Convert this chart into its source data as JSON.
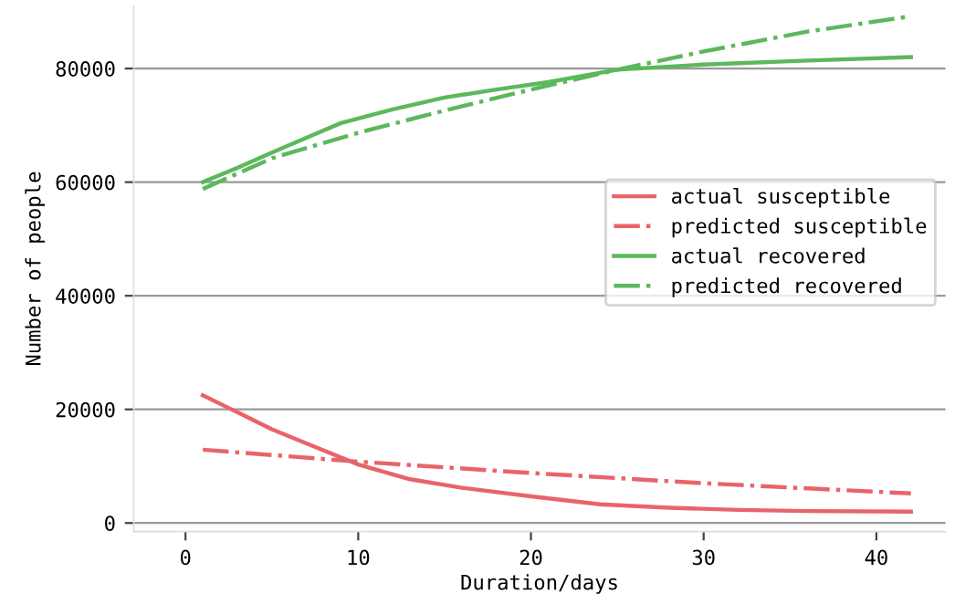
{
  "chart_data": {
    "type": "line",
    "xlabel": "Duration/days",
    "ylabel": "Number of people",
    "xlim": [
      -3,
      44
    ],
    "ylim": [
      -1500,
      91000
    ],
    "xticks": [
      0,
      10,
      20,
      30,
      40
    ],
    "yticks": [
      0,
      20000,
      40000,
      60000,
      80000
    ],
    "grid": "y",
    "legend": "right",
    "marker": "none",
    "series": [
      {
        "name": "actual susceptible",
        "color": "#e8646a",
        "line_style": "solid",
        "x": [
          1,
          3,
          5,
          7,
          10,
          13,
          16,
          20,
          24,
          28,
          32,
          36,
          42
        ],
        "values": [
          22500,
          19500,
          16500,
          14000,
          10300,
          7700,
          6200,
          4700,
          3300,
          2700,
          2300,
          2100,
          2000
        ]
      },
      {
        "name": "predicted susceptible",
        "color": "#e8646a",
        "line_style": "dashdot",
        "x": [
          1,
          10,
          20,
          30,
          42
        ],
        "values": [
          12900,
          10800,
          8800,
          7000,
          5200
        ]
      },
      {
        "name": "actual recovered",
        "color": "#5cb85c",
        "line_style": "solid",
        "x": [
          1,
          3,
          5,
          7,
          9,
          12,
          15,
          18,
          21,
          25,
          30,
          36,
          42
        ],
        "values": [
          60000,
          62500,
          65200,
          67800,
          70400,
          72800,
          74900,
          76300,
          77600,
          79800,
          80700,
          81400,
          82000
        ]
      },
      {
        "name": "predicted recovered",
        "color": "#5cb85c",
        "line_style": "dashdot",
        "x": [
          1,
          5,
          10,
          15,
          20,
          25,
          30,
          36,
          42
        ],
        "values": [
          58800,
          64200,
          68700,
          72600,
          76300,
          79800,
          83000,
          86500,
          89200
        ]
      }
    ]
  }
}
